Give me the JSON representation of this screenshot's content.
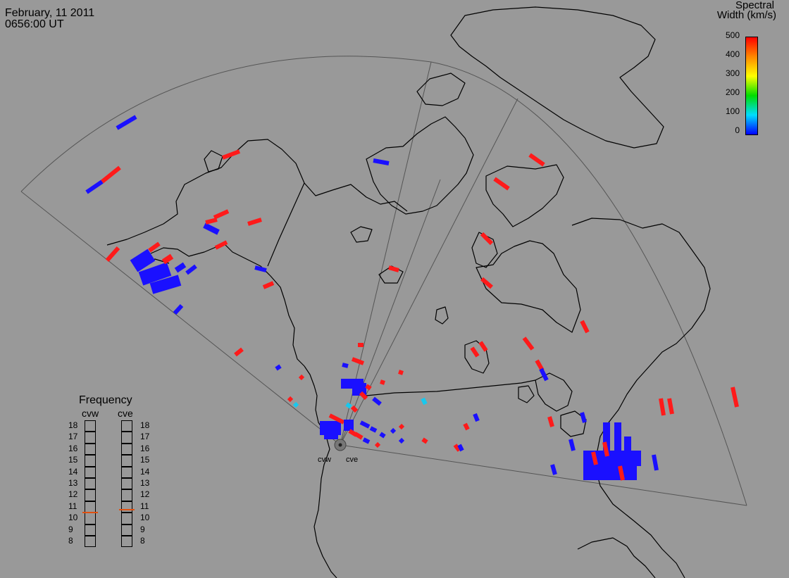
{
  "header": {
    "date": "February, 11 2011",
    "time": "0656:00 UT"
  },
  "colorbar": {
    "title_line1": "Spectral",
    "title_line2": "Width (km/s)",
    "ticks": [
      "500",
      "400",
      "300",
      "200",
      "100",
      "0"
    ],
    "stops": [
      "#ff0000",
      "#ff8800",
      "#ffff00",
      "#00dd00",
      "#00ddff",
      "#0000ff"
    ]
  },
  "frequency": {
    "title": "Frequency",
    "radars": [
      {
        "name": "cvw",
        "value_mhz": 10.6
      },
      {
        "name": "cve",
        "value_mhz": 10.8
      }
    ],
    "scale": [
      "18",
      "17",
      "16",
      "15",
      "14",
      "13",
      "12",
      "11",
      "10",
      "9",
      "8"
    ]
  },
  "sites": [
    "cvw",
    "cve"
  ],
  "colors": {
    "background": "#999999",
    "coast": "#000000",
    "low_width": "#1a10ff",
    "high_width": "#ff1a1a",
    "mid_width": "#18c8ee",
    "freq_marker": "#e05010"
  }
}
